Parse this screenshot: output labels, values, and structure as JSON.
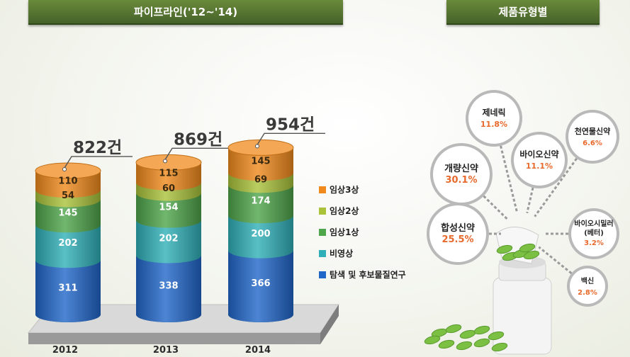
{
  "pipeline_title": "파이프라인('12~'14)",
  "type_title": "제품유형별",
  "colors": {
    "p3": "#f08a1c",
    "p2": "#a9c23a",
    "p1": "#4ea54a",
    "nonclinical": "#2fb0b8",
    "discovery": "#2166c9"
  },
  "chart_data": [
    {
      "type": "bar",
      "stacked": true,
      "title": "파이프라인('12~'14)",
      "categories": [
        "2012",
        "2013",
        "2014"
      ],
      "totals": [
        "822건",
        "869건",
        "954건"
      ],
      "series": [
        {
          "name": "탐색 및 후보물질연구",
          "color_key": "discovery",
          "values": [
            311,
            338,
            366
          ]
        },
        {
          "name": "비영상",
          "color_key": "nonclinical",
          "values": [
            202,
            202,
            200
          ]
        },
        {
          "name": "임상1상",
          "color_key": "p1",
          "values": [
            145,
            154,
            174
          ]
        },
        {
          "name": "임상2상",
          "color_key": "p2",
          "values": [
            54,
            60,
            69
          ]
        },
        {
          "name": "임상3상",
          "color_key": "p3",
          "values": [
            110,
            115,
            145
          ]
        }
      ],
      "legend": [
        "임상3상",
        "임상2상",
        "임상1상",
        "비영상",
        "탐색 및 후보물질연구"
      ],
      "legend_placement": "right"
    },
    {
      "type": "pie",
      "title": "제품유형별",
      "categories": [
        "제네릭",
        "바이오신약",
        "천연물신약",
        "개량신약",
        "합성신약",
        "바이오시밀러\n(베터)",
        "백신"
      ],
      "values": [
        11.8,
        11.1,
        6.6,
        30.1,
        25.5,
        3.2,
        2.8
      ],
      "labels": [
        "11.8%",
        "11.1%",
        "6.6%",
        "30.1%",
        "25.5%",
        "3.2%",
        "2.8%"
      ]
    }
  ]
}
